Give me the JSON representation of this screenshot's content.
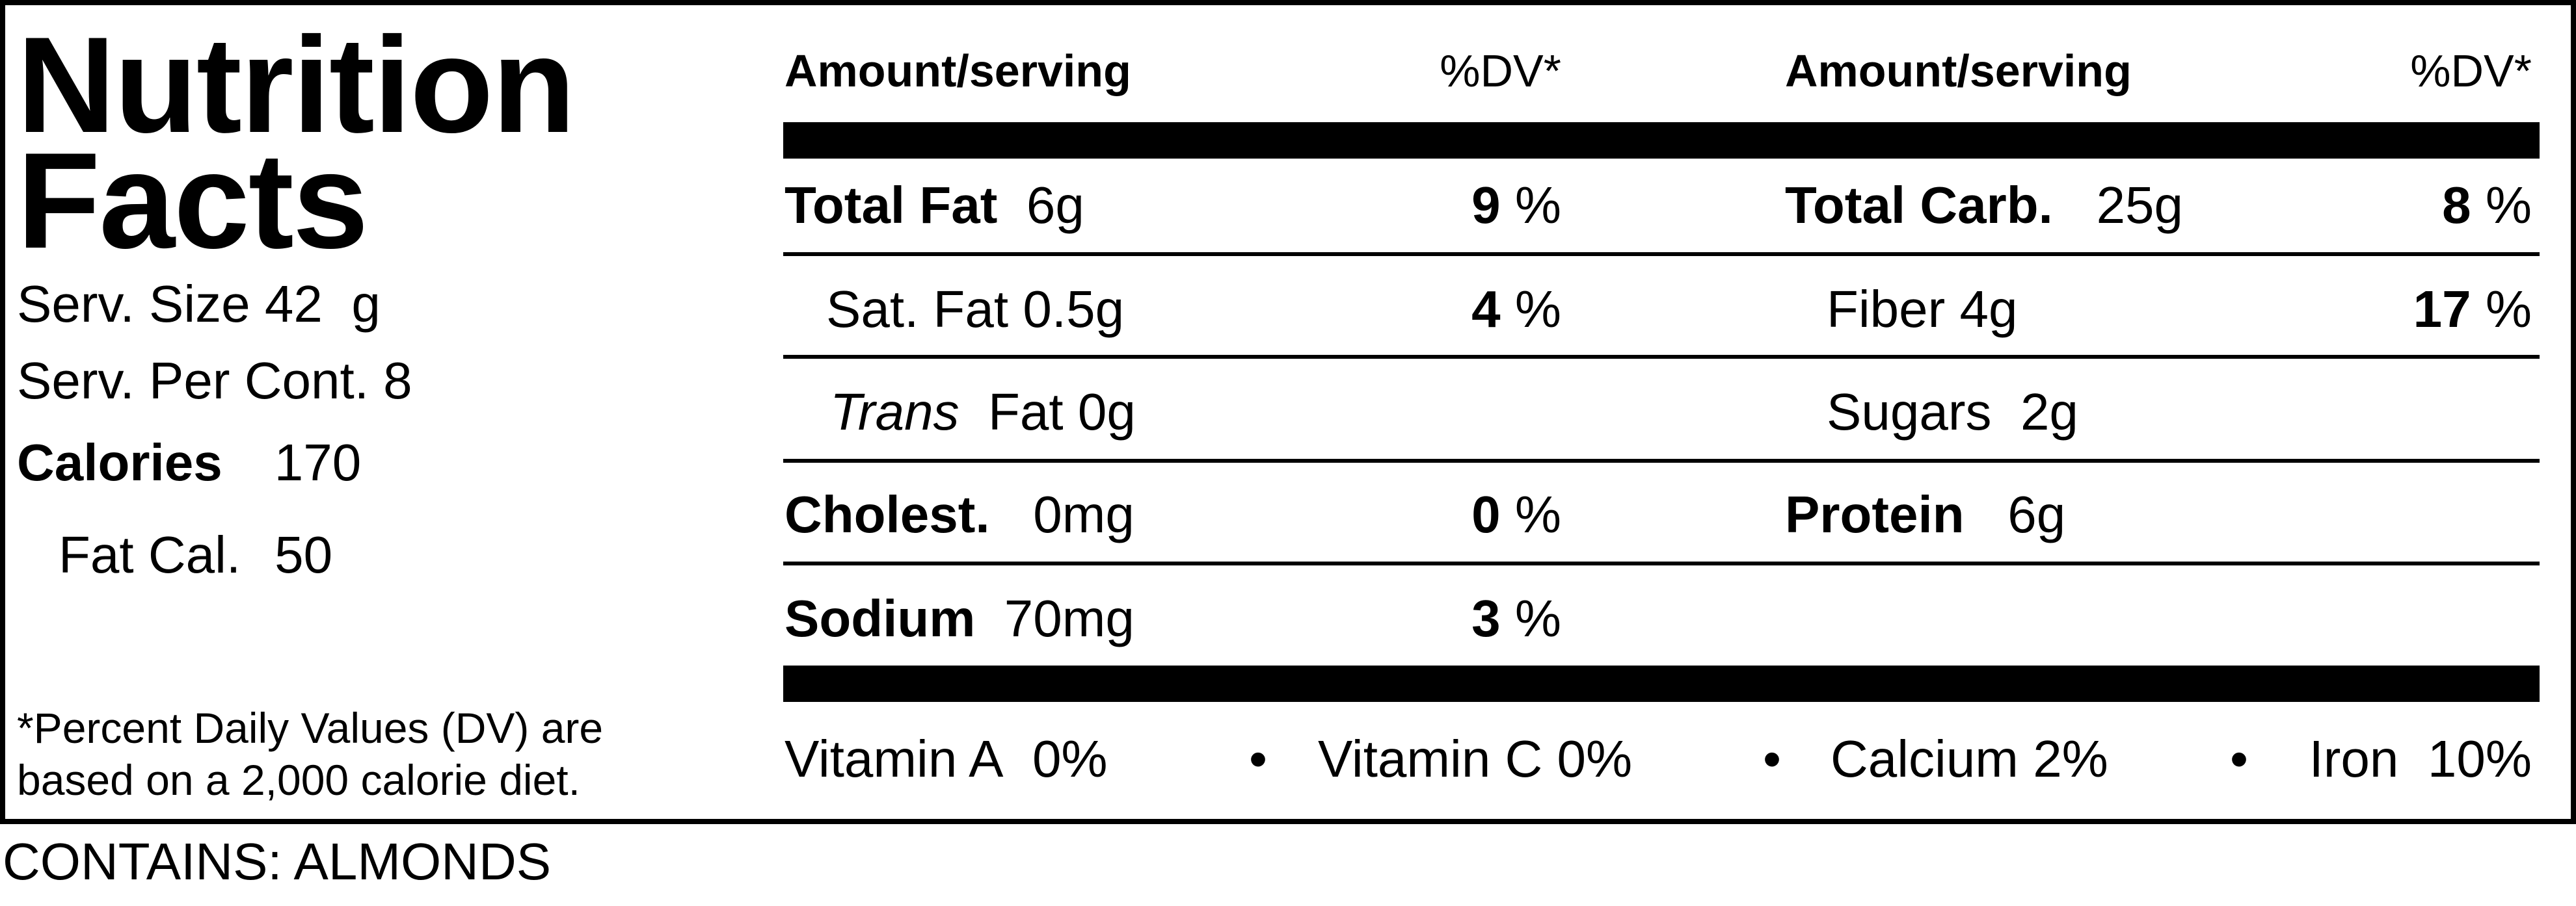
{
  "label": {
    "title_line1": "Nutrition",
    "title_line2": "Facts",
    "serving_size_label": "Serv. Size",
    "serving_size_value": "42  g",
    "servings_label": "Serv. Per Cont.",
    "servings_value": "8",
    "calories_label": "Calories",
    "calories_value": "170",
    "fat_cal_label": "Fat Cal.",
    "fat_cal_value": "50",
    "footnote_line1": "*Percent Daily Values (DV) are",
    "footnote_line2": "based on a 2,000 calorie diet."
  },
  "left_table": {
    "header_amount": "Amount/serving",
    "header_dv": "%DV*",
    "rows": [
      {
        "name": "Total Fat",
        "amount": "6g",
        "dv": "9",
        "pct": "%"
      },
      {
        "name": "Sat. Fat",
        "amount": "0.5g",
        "dv": "4",
        "pct": "%"
      },
      {
        "name": "Trans",
        "suffix": "Fat",
        "amount": "0g"
      },
      {
        "name": "Cholest.",
        "amount": "0mg",
        "dv": "0",
        "pct": "%"
      },
      {
        "name": "Sodium",
        "amount": "70mg",
        "dv": "3",
        "pct": "%"
      }
    ]
  },
  "right_table": {
    "header_amount": "Amount/serving",
    "header_dv": "%DV*",
    "rows": [
      {
        "name": "Total Carb.",
        "amount": "25g",
        "dv": "8",
        "pct": "%"
      },
      {
        "name": "Fiber",
        "amount": "4g",
        "dv": "17",
        "pct": "%"
      },
      {
        "name": "Sugars",
        "amount": "2g"
      },
      {
        "name": "Protein",
        "amount": "6g"
      }
    ]
  },
  "vitamins": [
    {
      "name": "Vitamin A",
      "value": "0%"
    },
    {
      "name": "Vitamin C",
      "value": "0%"
    },
    {
      "name": "Calcium",
      "value": "2%"
    },
    {
      "name": "Iron",
      "value": "10%"
    }
  ],
  "bullet": "•",
  "contains": "CONTAINS: ALMONDS"
}
